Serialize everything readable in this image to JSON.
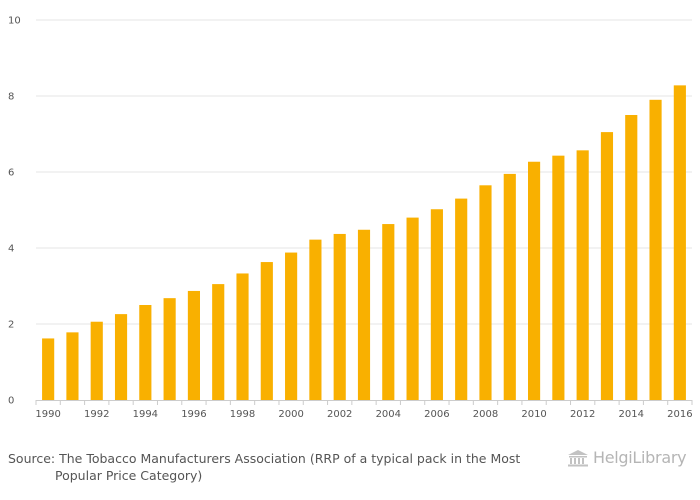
{
  "chart_data": {
    "type": "bar",
    "title": "",
    "xlabel": "",
    "ylabel": "",
    "ylim": [
      0,
      10
    ],
    "yticks": [
      "0",
      "2",
      "4",
      "6",
      "8",
      "10"
    ],
    "categories": [
      "1990",
      "1991",
      "1992",
      "1993",
      "1994",
      "1995",
      "1996",
      "1997",
      "1998",
      "1999",
      "2000",
      "2001",
      "2002",
      "2003",
      "2004",
      "2005",
      "2006",
      "2007",
      "2008",
      "2009",
      "2010",
      "2011",
      "2012",
      "2013",
      "2014",
      "2015",
      "2016"
    ],
    "xtick_labels": [
      "1990",
      "1992",
      "1994",
      "1996",
      "1998",
      "2000",
      "2002",
      "2004",
      "2006",
      "2008",
      "2010",
      "2012",
      "2014",
      "2016"
    ],
    "values": [
      1.62,
      1.78,
      2.06,
      2.26,
      2.5,
      2.68,
      2.87,
      3.05,
      3.33,
      3.63,
      3.88,
      4.22,
      4.37,
      4.48,
      4.63,
      4.8,
      5.02,
      5.3,
      5.65,
      5.95,
      6.27,
      6.43,
      6.57,
      7.05,
      7.5,
      7.9,
      8.28
    ],
    "bar_color": "#F9B000",
    "grid": true,
    "legend": "none"
  },
  "footer": {
    "source_line1": "Source: The Tobacco Manufacturers Association (RRP of a typical pack in the Most",
    "source_line2": "Popular Price Category)",
    "brand": "HelgiLibrary"
  }
}
